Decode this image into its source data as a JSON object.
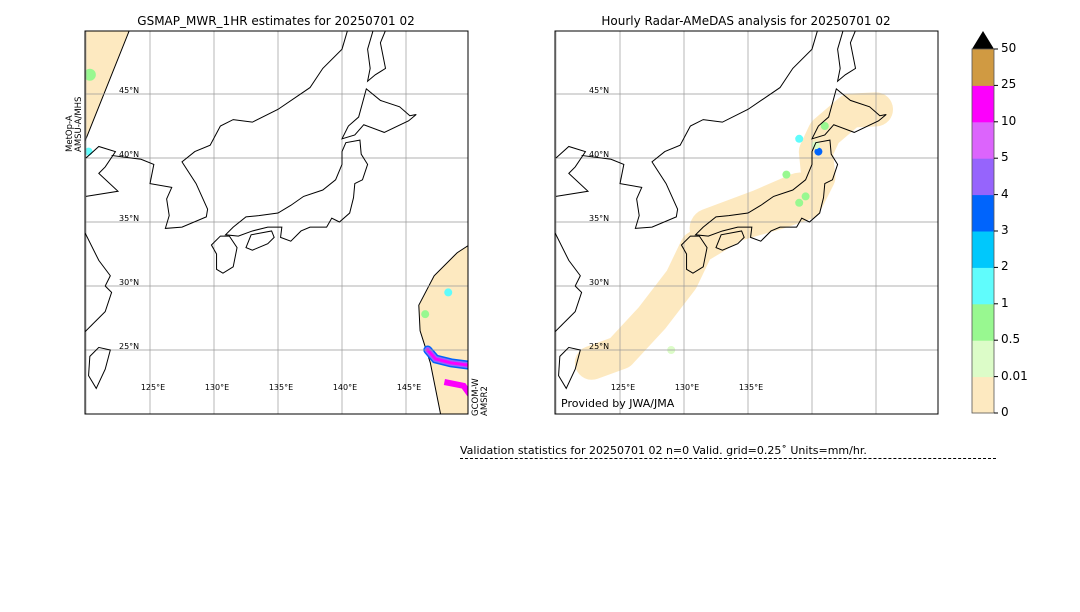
{
  "left_panel": {
    "title": "GSMAP_MWR_1HR estimates for 20250701 02",
    "sensor_left": [
      "MetOp-A",
      "AMSU-A/MHS"
    ],
    "sensor_right": [
      "GCOM-W",
      "AMSR2"
    ]
  },
  "right_panel": {
    "title": "Hourly Radar-AMeDAS analysis for 20250701 02",
    "credit": "Provided by JWA/JMA"
  },
  "map": {
    "lon_range": [
      120,
      150
    ],
    "lat_range": [
      20,
      50
    ],
    "lon_labels": [
      "125°E",
      "130°E",
      "135°E",
      "140°E",
      "145°E"
    ],
    "lat_labels": [
      "45°N",
      "40°N",
      "35°N",
      "30°N",
      "25°N"
    ]
  },
  "colorbar": {
    "ticks": [
      "0",
      "0.01",
      "0.5",
      "1",
      "2",
      "3",
      "4",
      "5",
      "10",
      "25",
      "50"
    ],
    "colors": [
      "#fde9c0",
      "#dcfcc8",
      "#98f890",
      "#60fcfc",
      "#00c8fc",
      "#0064fc",
      "#9664fc",
      "#dc64fc",
      "#fc00fc",
      "#d09a42"
    ],
    "extend_color": "#000000"
  },
  "validation": {
    "text": "Validation statistics for 20250701 02  n=0 Valid. grid=0.25˚ Units=mm/hr."
  }
}
